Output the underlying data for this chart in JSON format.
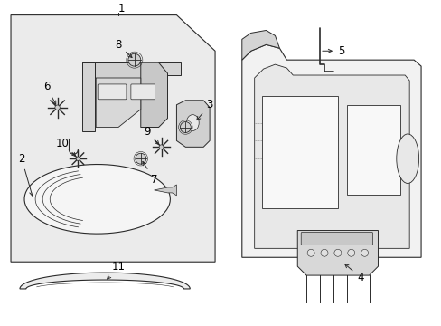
{
  "background": "#ffffff",
  "line_color": "#2a2a2a",
  "line_width": 0.8,
  "fig_w": 4.89,
  "fig_h": 3.6,
  "dpi": 100
}
